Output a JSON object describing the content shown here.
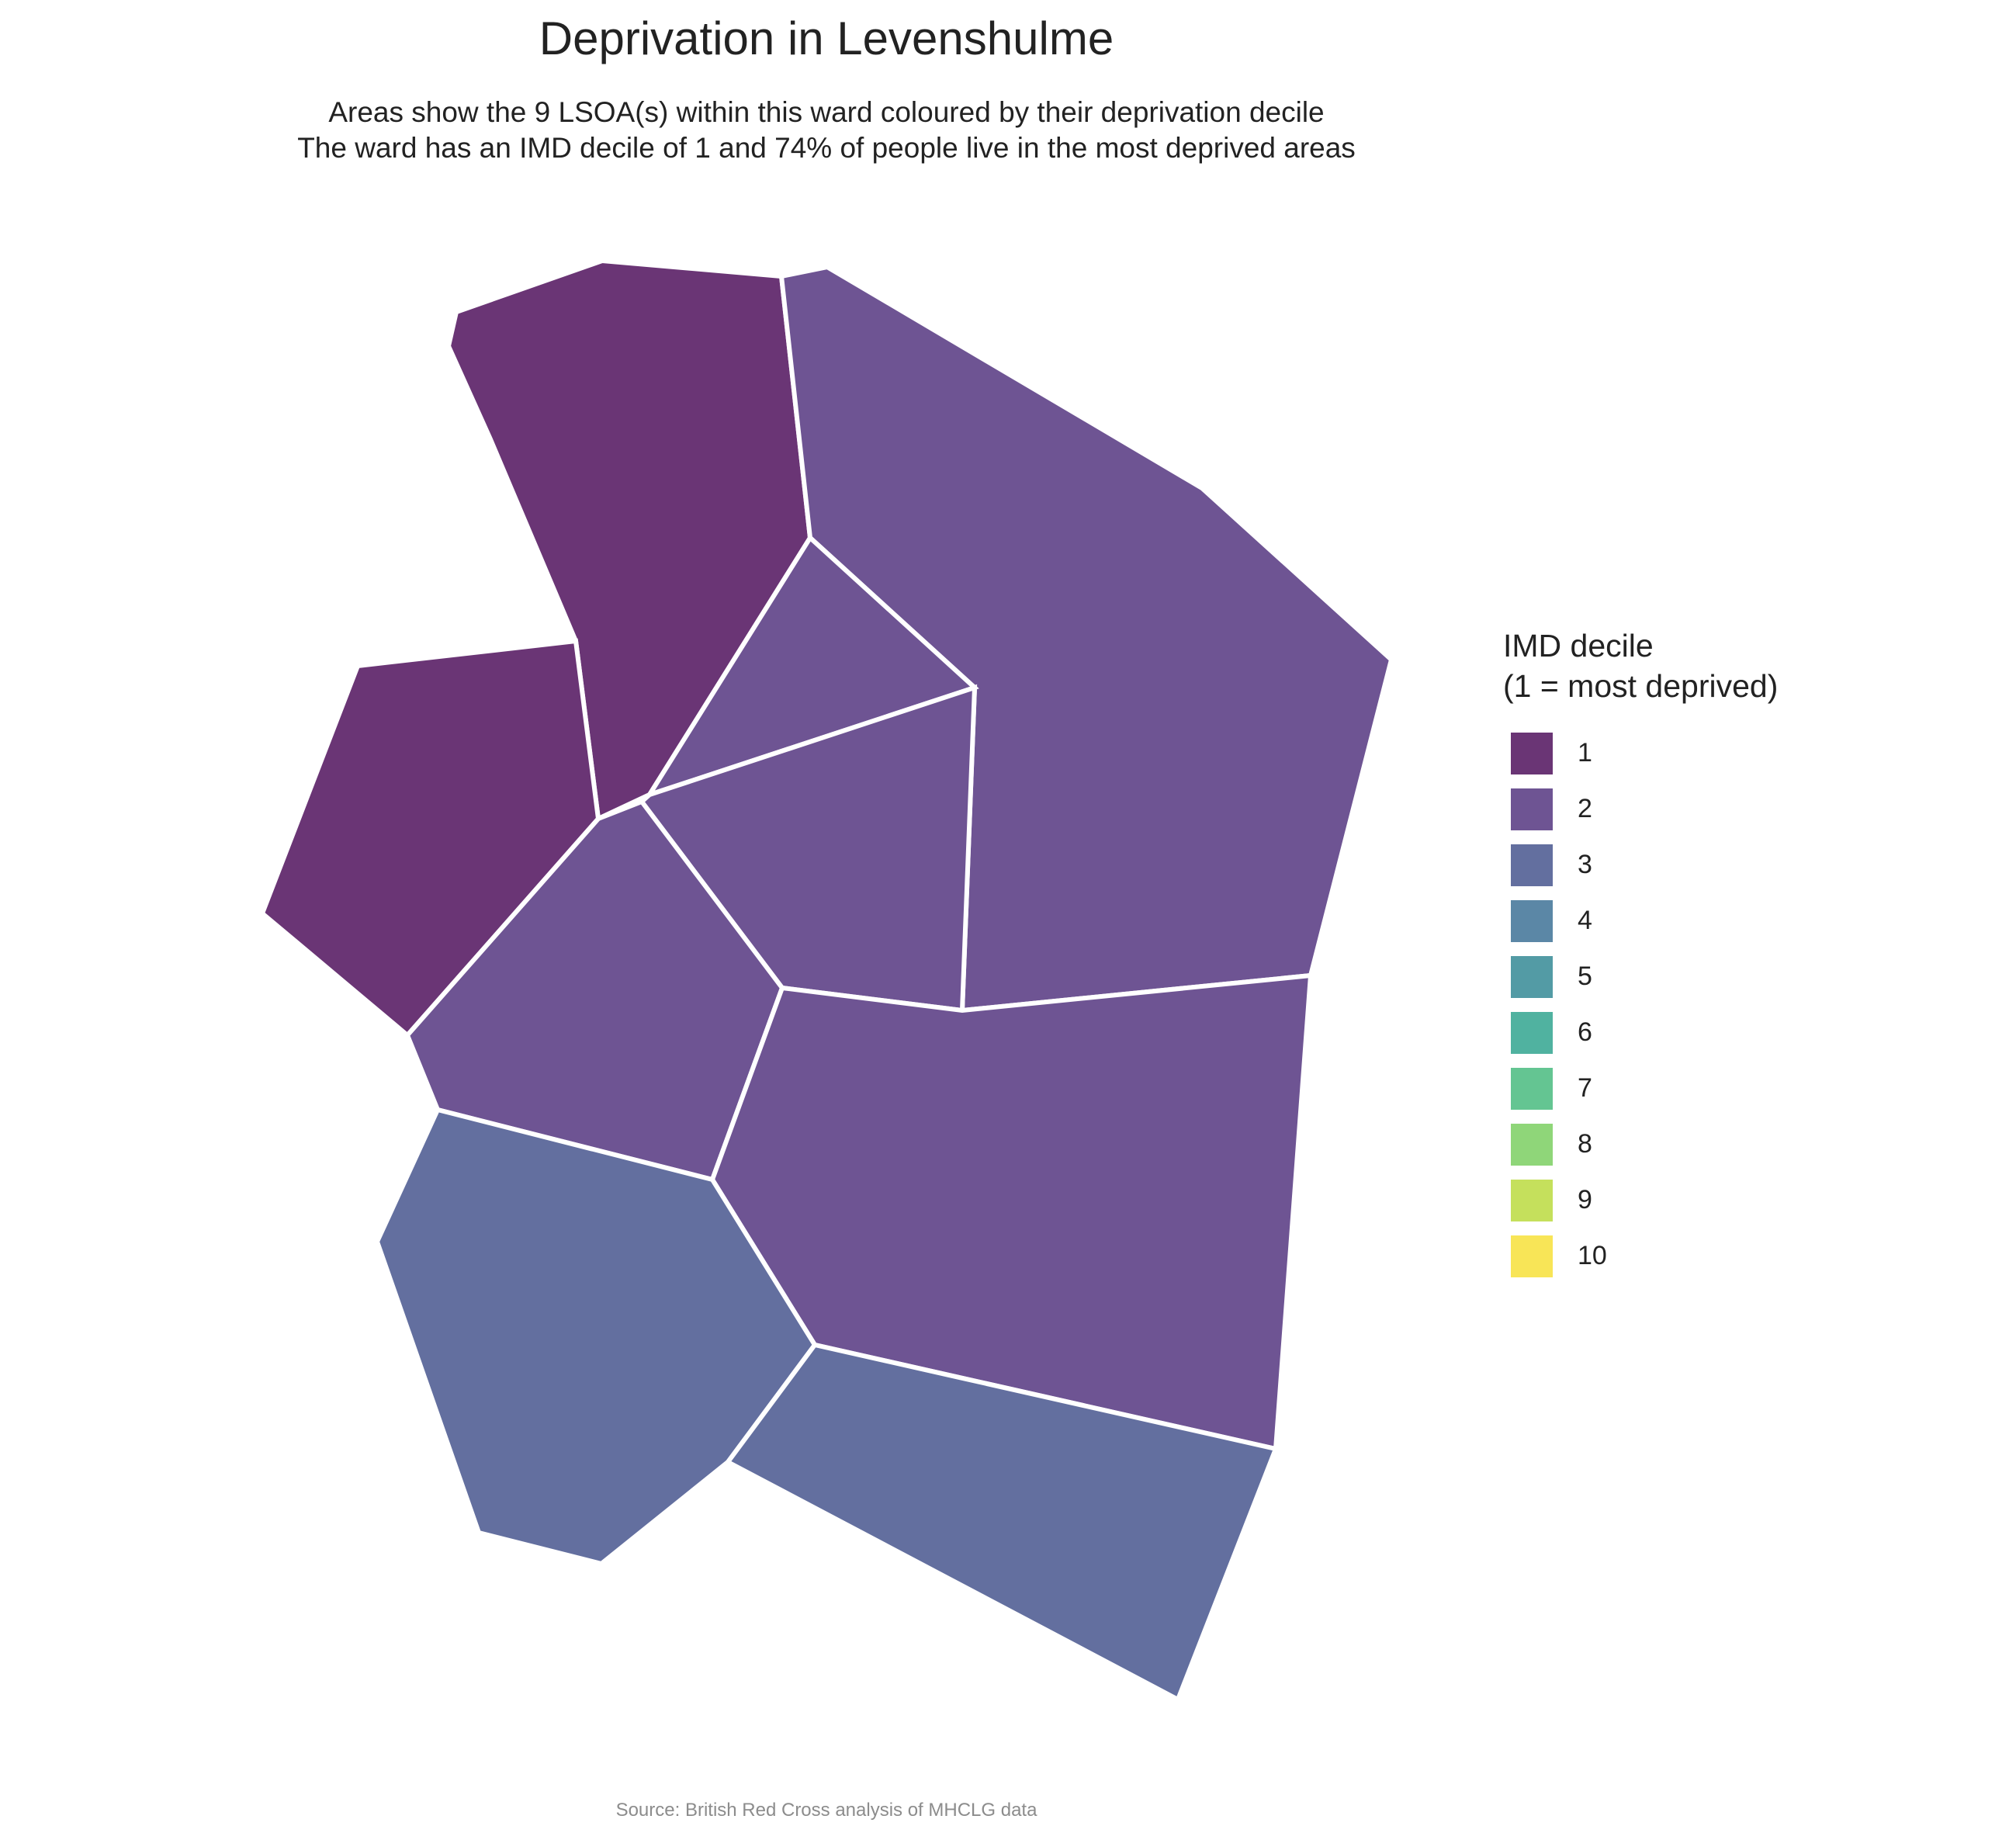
{
  "title": "Deprivation in Levenshulme",
  "subtitle": {
    "line1": "Areas show the 9 LSOA(s) within this ward coloured by their deprivation decile",
    "line2": "The ward has an IMD decile of 1 and 74% of people live in the most deprived areas"
  },
  "legend": {
    "title_line1": "IMD decile",
    "title_line2": "(1 = most deprived)",
    "items": [
      {
        "label": "1",
        "color": "#6a3575"
      },
      {
        "label": "2",
        "color": "#6e5493"
      },
      {
        "label": "3",
        "color": "#636f9f"
      },
      {
        "label": "4",
        "color": "#5b87a6"
      },
      {
        "label": "5",
        "color": "#539ba5"
      },
      {
        "label": "6",
        "color": "#50b2a0"
      },
      {
        "label": "7",
        "color": "#64c592"
      },
      {
        "label": "8",
        "color": "#8fd679"
      },
      {
        "label": "9",
        "color": "#c5e05c"
      },
      {
        "label": "10",
        "color": "#f8e557"
      }
    ]
  },
  "areas": [
    {
      "id": "lsoa-north-west",
      "decile": 1
    },
    {
      "id": "lsoa-west",
      "decile": 1
    },
    {
      "id": "lsoa-north-east",
      "decile": 2
    },
    {
      "id": "lsoa-central-north",
      "decile": 2
    },
    {
      "id": "lsoa-central",
      "decile": 2
    },
    {
      "id": "lsoa-central-west",
      "decile": 2
    },
    {
      "id": "lsoa-south-east",
      "decile": 2
    },
    {
      "id": "lsoa-south-west",
      "decile": 3
    },
    {
      "id": "lsoa-south",
      "decile": 3
    }
  ],
  "caption": "Source: British Red Cross analysis of MHCLG data"
}
